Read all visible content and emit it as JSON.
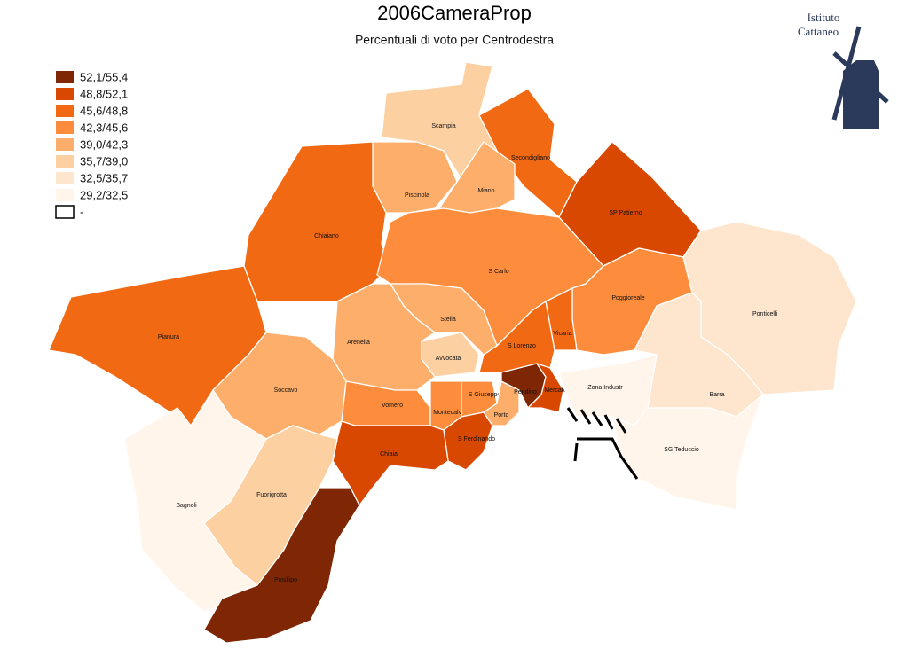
{
  "title": "2006CameraProp",
  "subtitle": "Percentuali di voto per Centrodestra",
  "logo": {
    "line1": "Istituto",
    "line2": "Cattaneo"
  },
  "legend": {
    "items": [
      {
        "label": "52,1/55,4",
        "color": "#7f2704",
        "regions": [
          "Posillipo",
          "Pendino"
        ]
      },
      {
        "label": "48,8/52,1",
        "color": "#d94801",
        "regions": [
          "SP Patierno",
          "Chiaia",
          "S Ferdinando",
          "Mercato"
        ]
      },
      {
        "label": "45,6/48,8",
        "color": "#f16913",
        "regions": [
          "Chiaiano",
          "Pianura",
          "Secondigliano",
          "S Lorenzo",
          "Vicaria"
        ]
      },
      {
        "label": "42,3/45,6",
        "color": "#fd8d3c",
        "regions": [
          "S Carlo",
          "Poggioreale",
          "Vomero",
          "Montecalvario",
          "S Giuseppe"
        ]
      },
      {
        "label": "39,0/42,3",
        "color": "#fdae6b",
        "regions": [
          "Miano",
          "Stella",
          "Arenella",
          "Soccavo",
          "Piscinola",
          "Porto"
        ]
      },
      {
        "label": "35,7/39,0",
        "color": "#fdd0a2",
        "regions": [
          "Scampia",
          "Fuorigrotta",
          "Avvocata"
        ]
      },
      {
        "label": "32,5/35,7",
        "color": "#fee6ce",
        "regions": [
          "Ponticelli",
          "Barra"
        ]
      },
      {
        "label": "29,2/32,5",
        "color": "#fff5eb",
        "regions": [
          "Bagnoli",
          "SG Teduccio",
          "Zona Industr"
        ]
      },
      {
        "label": "-",
        "color": "#ffffff",
        "border": "#000000",
        "regions": []
      }
    ]
  }
}
